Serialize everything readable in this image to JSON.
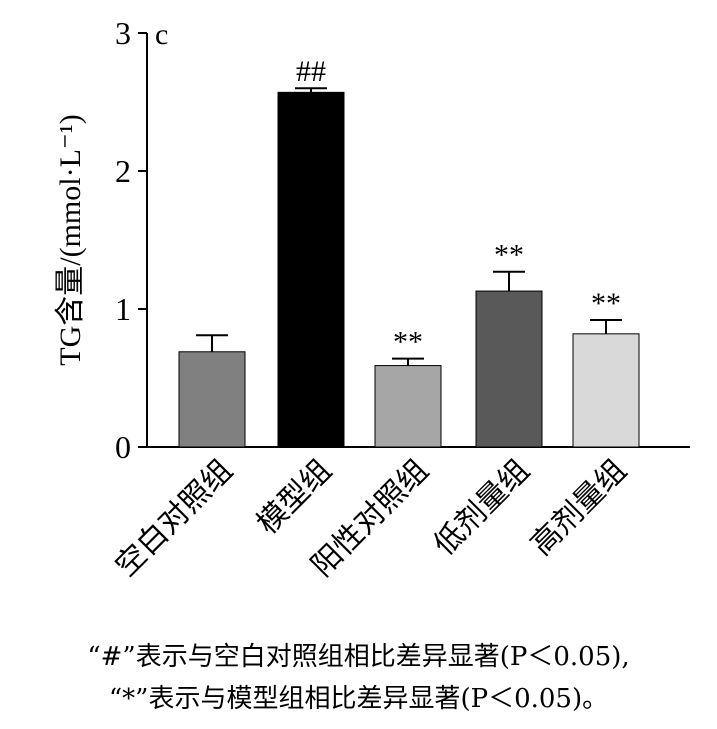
{
  "chart_data": {
    "type": "bar",
    "panel_label": "c",
    "ylabel": "TG含量/(mmol·L⁻¹)",
    "ylim": [
      0,
      3
    ],
    "yticks": [
      "0",
      "1",
      "2",
      "3"
    ],
    "categories": [
      "空白对照组",
      "模型组",
      "阳性对照组",
      "低剂量组",
      "高剂量组"
    ],
    "values": [
      0.69,
      2.57,
      0.59,
      1.13,
      0.82
    ],
    "errors": [
      0.12,
      0.03,
      0.05,
      0.14,
      0.1
    ],
    "significance": [
      "",
      "##",
      "**",
      "**",
      "**"
    ],
    "colors": [
      "#808080",
      "#000000",
      "#a6a6a6",
      "#595959",
      "#d9d9d9"
    ],
    "grid": false
  },
  "footnotes": [
    "“#”表示与空白对照组相比差异显著(P＜0.05),",
    "“*”表示与模型组相比差异显著(P＜0.05)。"
  ]
}
